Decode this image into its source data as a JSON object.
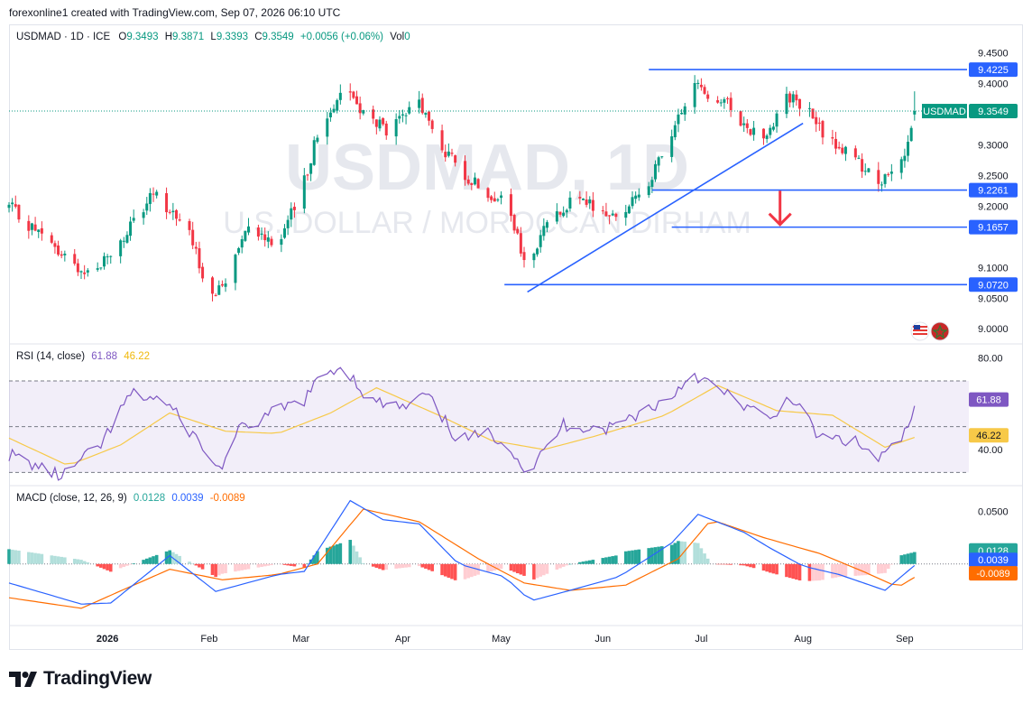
{
  "header": {
    "text": "forexonline1 created with TradingView.com, Sep 07, 2026 06:10 UTC"
  },
  "legend": {
    "symbol": "USDMAD · 1D · ICE",
    "o_label": "O",
    "o": "9.3493",
    "h_label": "H",
    "h": "9.3871",
    "l_label": "L",
    "l": "9.3393",
    "c_label": "C",
    "c": "9.3549",
    "change": "+0.0056 (+0.06%)",
    "vol_label": "Vol",
    "vol": "0"
  },
  "watermark": {
    "line1": "USDMAD, 1D",
    "line2": "U.S. DOLLAR / MOROCCAN DIRHAM"
  },
  "colors": {
    "up": "#089981",
    "down": "#f23645",
    "line": "#2962ff",
    "rsi": "#7e57c2",
    "rsi_ma": "#f7c948",
    "macd": "#2962ff",
    "signal": "#ff6d00",
    "hist_up": "#26a69a",
    "hist_up_light": "#b2dfdb",
    "hist_down": "#ff5252",
    "hist_down_light": "#ffcdd2",
    "arrow": "#f23645",
    "grid": "#e0e3eb"
  },
  "chart_data": [
    {
      "type": "candlestick",
      "title": "USDMAD · 1D · ICE",
      "ylim": [
        8.9768,
        9.4771
      ],
      "y_ticks": [
        "9.4500",
        "9.4000",
        "9.3000",
        "9.2500",
        "9.2000",
        "9.1000",
        "9.0500",
        "9.0000"
      ],
      "y_tick_values": [
        9.45,
        9.4,
        9.3,
        9.25,
        9.2,
        9.1,
        9.05,
        9.0
      ],
      "x_ticks": [
        "2026",
        "Feb",
        "Mar",
        "Apr",
        "May",
        "Jun",
        "Jul",
        "Aug",
        "Sep"
      ],
      "x_tick_dates": [
        "2026-01-01",
        "2026-02-01",
        "2026-03-01",
        "2026-04-01",
        "2026-05-01",
        "2026-06-01",
        "2026-07-01",
        "2026-08-01",
        "2026-09-01"
      ],
      "x_range": [
        "2025-12-02",
        "2026-09-20"
      ],
      "price_label": {
        "text": "USDMAD",
        "value": "9.3549",
        "level": 9.3549
      },
      "levels": [
        {
          "value": 9.4225,
          "label": "9.4225",
          "from": "2026-06-15"
        },
        {
          "value": 9.2261,
          "label": "9.2261",
          "from": "2026-06-16"
        },
        {
          "value": 9.1657,
          "label": "9.1657",
          "from": "2026-06-22"
        },
        {
          "value": 9.072,
          "label": "9.0720",
          "from": "2026-05-02"
        }
      ],
      "trendline": {
        "from": {
          "date": "2026-05-09",
          "value": 9.06
        },
        "to": {
          "date": "2026-08-01",
          "value": 9.335
        }
      },
      "arrow": {
        "date": "2026-07-25",
        "from": 9.225,
        "to": 9.17
      },
      "anchors": [
        [
          "2025-12-02",
          9.2
        ],
        [
          "2025-12-10",
          9.16
        ],
        [
          "2025-12-20",
          9.11
        ],
        [
          "2025-12-27",
          9.09
        ],
        [
          "2026-01-05",
          9.14
        ],
        [
          "2026-01-15",
          9.22
        ],
        [
          "2026-01-25",
          9.17
        ],
        [
          "2026-01-28",
          9.12
        ],
        [
          "2026-02-02",
          9.05
        ],
        [
          "2026-02-06",
          9.08
        ],
        [
          "2026-02-12",
          9.17
        ],
        [
          "2026-02-22",
          9.14
        ],
        [
          "2026-03-01",
          9.22
        ],
        [
          "2026-03-05",
          9.3
        ],
        [
          "2026-03-14",
          9.4
        ],
        [
          "2026-03-20",
          9.35
        ],
        [
          "2026-03-28",
          9.32
        ],
        [
          "2026-04-06",
          9.37
        ],
        [
          "2026-04-12",
          9.3
        ],
        [
          "2026-04-20",
          9.25
        ],
        [
          "2026-04-28",
          9.22
        ],
        [
          "2026-05-03",
          9.2
        ],
        [
          "2026-05-09",
          9.09
        ],
        [
          "2026-05-16",
          9.19
        ],
        [
          "2026-05-25",
          9.21
        ],
        [
          "2026-06-05",
          9.18
        ],
        [
          "2026-06-15",
          9.24
        ],
        [
          "2026-06-22",
          9.31
        ],
        [
          "2026-06-28",
          9.4
        ],
        [
          "2026-07-08",
          9.37
        ],
        [
          "2026-07-15",
          9.33
        ],
        [
          "2026-07-20",
          9.31
        ],
        [
          "2026-07-27",
          9.38
        ],
        [
          "2026-08-02",
          9.36
        ],
        [
          "2026-08-08",
          9.31
        ],
        [
          "2026-08-14",
          9.29
        ],
        [
          "2026-08-24",
          9.24
        ],
        [
          "2026-08-30",
          9.25
        ],
        [
          "2026-09-05",
          9.355
        ]
      ]
    },
    {
      "type": "line",
      "title": "RSI (14, close)",
      "series": [
        {
          "name": "RSI",
          "last": "61.88",
          "last_value": 61.88
        },
        {
          "name": "RSI-based MA",
          "last": "46.22",
          "last_value": 46.22
        }
      ],
      "ylim": [
        25,
        85
      ],
      "bands": [
        70,
        50,
        30
      ],
      "y_ticks": [
        "80.00",
        "40.00"
      ],
      "y_tick_values": [
        80,
        40
      ],
      "rsi_anchors": [
        [
          "2025-12-02",
          38
        ],
        [
          "2025-12-10",
          33
        ],
        [
          "2025-12-18",
          28
        ],
        [
          "2025-12-30",
          42
        ],
        [
          "2026-01-08",
          64
        ],
        [
          "2026-01-18",
          62
        ],
        [
          "2026-01-28",
          45
        ],
        [
          "2026-02-04",
          31
        ],
        [
          "2026-02-10",
          48
        ],
        [
          "2026-02-22",
          57
        ],
        [
          "2026-03-02",
          62
        ],
        [
          "2026-03-08",
          73
        ],
        [
          "2026-03-14",
          77
        ],
        [
          "2026-03-22",
          61
        ],
        [
          "2026-04-02",
          58
        ],
        [
          "2026-04-08",
          64
        ],
        [
          "2026-04-18",
          44
        ],
        [
          "2026-04-28",
          47
        ],
        [
          "2026-05-04",
          41
        ],
        [
          "2026-05-09",
          29
        ],
        [
          "2026-05-20",
          51
        ],
        [
          "2026-06-02",
          49
        ],
        [
          "2026-06-12",
          56
        ],
        [
          "2026-06-22",
          63
        ],
        [
          "2026-06-28",
          74
        ],
        [
          "2026-07-06",
          66
        ],
        [
          "2026-07-16",
          58
        ],
        [
          "2026-07-22",
          52
        ],
        [
          "2026-07-28",
          64
        ],
        [
          "2026-08-06",
          45
        ],
        [
          "2026-08-16",
          44
        ],
        [
          "2026-08-24",
          36
        ],
        [
          "2026-08-30",
          42
        ],
        [
          "2026-09-06",
          61.88
        ]
      ],
      "ma_anchors": [
        [
          "2025-12-02",
          45
        ],
        [
          "2025-12-20",
          33
        ],
        [
          "2026-01-05",
          42
        ],
        [
          "2026-01-20",
          56
        ],
        [
          "2026-02-06",
          48
        ],
        [
          "2026-02-22",
          47
        ],
        [
          "2026-03-10",
          56
        ],
        [
          "2026-03-24",
          67
        ],
        [
          "2026-04-12",
          55
        ],
        [
          "2026-04-28",
          44
        ],
        [
          "2026-05-14",
          40
        ],
        [
          "2026-05-30",
          46
        ],
        [
          "2026-06-20",
          55
        ],
        [
          "2026-07-06",
          68
        ],
        [
          "2026-07-24",
          57
        ],
        [
          "2026-08-10",
          55
        ],
        [
          "2026-08-26",
          41
        ],
        [
          "2026-09-06",
          46.22
        ]
      ]
    },
    {
      "type": "line",
      "title": "MACD (close, 12, 26, 9)",
      "series": [
        {
          "name": "Histogram",
          "last": "0.0128",
          "last_value": 0.0128
        },
        {
          "name": "MACD",
          "last": "0.0039",
          "last_value": 0.0039
        },
        {
          "name": "Signal",
          "last": "-0.0089",
          "last_value": -0.0089
        }
      ],
      "ylim": [
        -0.0575,
        0.0725
      ],
      "y_ticks": [
        "0.0500"
      ],
      "y_tick_values": [
        0.05
      ],
      "zero_line": 0,
      "macd_anchors": [
        [
          "2025-12-02",
          -0.018
        ],
        [
          "2025-12-24",
          -0.038
        ],
        [
          "2026-01-02",
          -0.037
        ],
        [
          "2026-01-20",
          0.008
        ],
        [
          "2026-02-03",
          -0.026
        ],
        [
          "2026-02-22",
          -0.01
        ],
        [
          "2026-03-02",
          -0.007
        ],
        [
          "2026-03-16",
          0.06
        ],
        [
          "2026-03-26",
          0.042
        ],
        [
          "2026-04-06",
          0.038
        ],
        [
          "2026-04-18",
          0.0
        ],
        [
          "2026-05-02",
          -0.012
        ],
        [
          "2026-05-10",
          -0.035
        ],
        [
          "2026-05-22",
          -0.025
        ],
        [
          "2026-06-06",
          -0.012
        ],
        [
          "2026-06-22",
          0.02
        ],
        [
          "2026-06-30",
          0.047
        ],
        [
          "2026-07-14",
          0.03
        ],
        [
          "2026-07-22",
          0.015
        ],
        [
          "2026-08-01",
          -0.002
        ],
        [
          "2026-08-12",
          -0.01
        ],
        [
          "2026-08-26",
          -0.025
        ],
        [
          "2026-09-06",
          0.0039
        ]
      ],
      "signal_anchors": [
        [
          "2025-12-02",
          -0.032
        ],
        [
          "2025-12-24",
          -0.042
        ],
        [
          "2026-01-20",
          -0.005
        ],
        [
          "2026-02-05",
          -0.015
        ],
        [
          "2026-02-22",
          -0.01
        ],
        [
          "2026-03-06",
          0.0
        ],
        [
          "2026-03-20",
          0.052
        ],
        [
          "2026-04-06",
          0.04
        ],
        [
          "2026-04-24",
          0.005
        ],
        [
          "2026-05-08",
          -0.018
        ],
        [
          "2026-05-22",
          -0.025
        ],
        [
          "2026-06-08",
          -0.02
        ],
        [
          "2026-06-24",
          0.005
        ],
        [
          "2026-07-04",
          0.042
        ],
        [
          "2026-07-20",
          0.025
        ],
        [
          "2026-08-06",
          0.01
        ],
        [
          "2026-08-20",
          -0.008
        ],
        [
          "2026-08-30",
          -0.022
        ],
        [
          "2026-09-06",
          -0.0089
        ]
      ]
    }
  ],
  "footer": {
    "brand": "TradingView"
  }
}
